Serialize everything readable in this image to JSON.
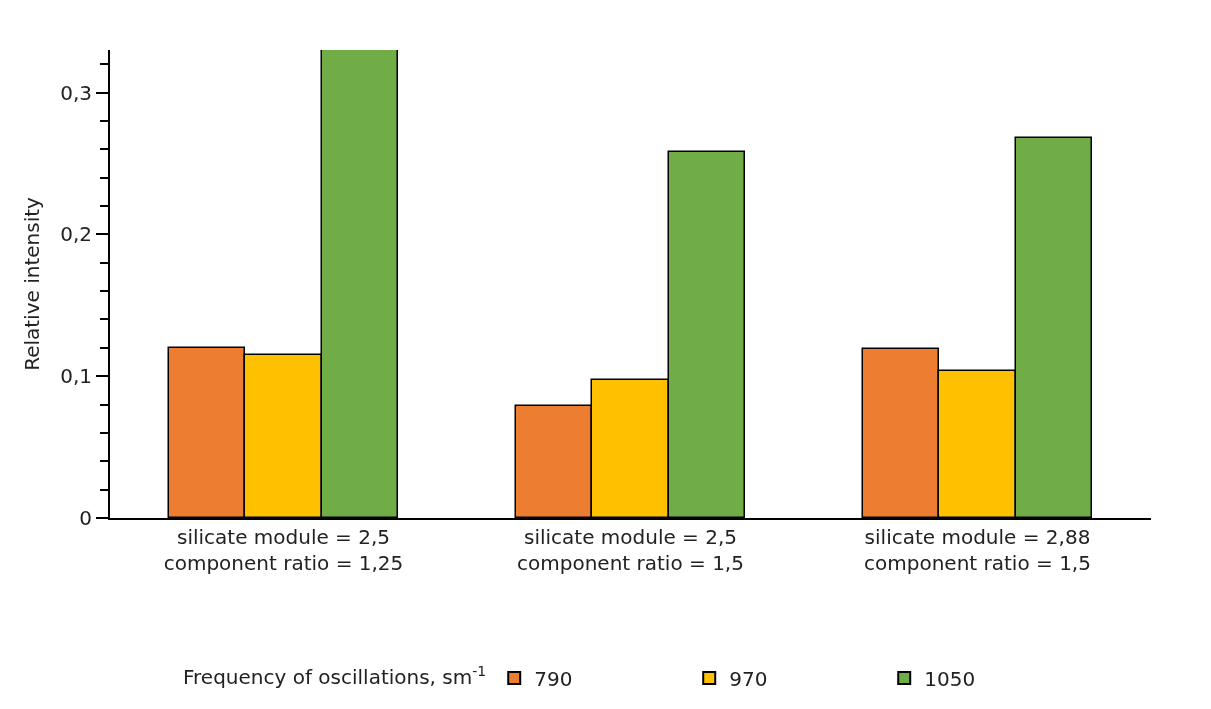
{
  "chart_data": {
    "type": "bar",
    "ylabel": "Relative intensity",
    "legend_title": "Frequency of oscillations, sm$^{-1}$",
    "categories": [
      "silicate module = 2,5\ncomponent ratio = 1,25",
      "silicate module = 2,5\ncomponent ratio = 1,5",
      "silicate module = 2,88\ncomponent ratio = 1,5"
    ],
    "series": [
      {
        "name": "790",
        "color": "#ed7d31",
        "values": [
          0.12,
          0.079,
          0.119
        ]
      },
      {
        "name": "970",
        "color": "#ffc000",
        "values": [
          0.115,
          0.097,
          0.104
        ]
      },
      {
        "name": "1050",
        "color": "#70ad47",
        "values": [
          0.33,
          0.258,
          0.268
        ]
      }
    ],
    "ylim": [
      0,
      0.33
    ],
    "yticks": [
      {
        "value": 0,
        "label": "0"
      },
      {
        "value": 0.02,
        "label": null
      },
      {
        "value": 0.04,
        "label": null
      },
      {
        "value": 0.06,
        "label": null
      },
      {
        "value": 0.08,
        "label": null
      },
      {
        "value": 0.1,
        "label": "0,1"
      },
      {
        "value": 0.12,
        "label": null
      },
      {
        "value": 0.14,
        "label": null
      },
      {
        "value": 0.16,
        "label": null
      },
      {
        "value": 0.18,
        "label": null
      },
      {
        "value": 0.2,
        "label": "0,2"
      },
      {
        "value": 0.22,
        "label": null
      },
      {
        "value": 0.24,
        "label": null
      },
      {
        "value": 0.26,
        "label": null
      },
      {
        "value": 0.28,
        "label": null
      },
      {
        "value": 0.3,
        "label": "0,3"
      },
      {
        "value": 0.32,
        "label": null
      }
    ],
    "legend": "bottom"
  }
}
